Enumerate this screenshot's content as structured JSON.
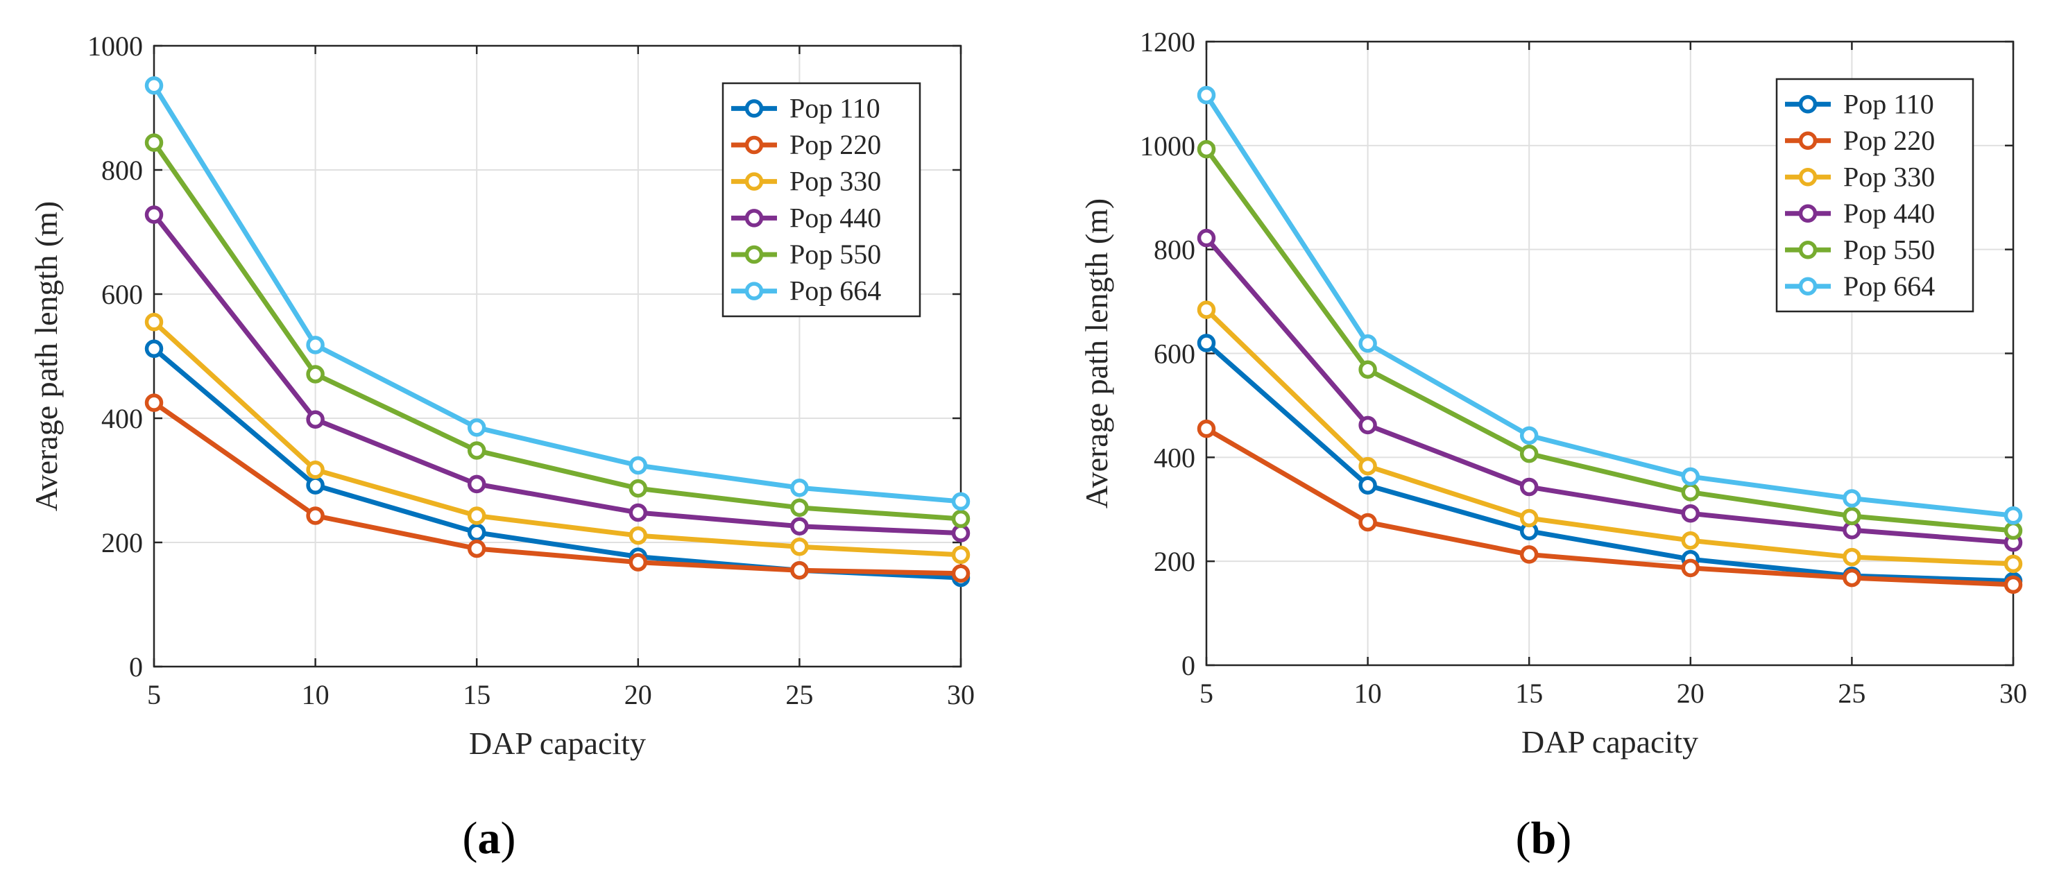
{
  "colors": {
    "series": [
      "#0072BD",
      "#D95319",
      "#EDB120",
      "#7E2F8E",
      "#77AC30",
      "#4DBEEE"
    ],
    "grid": "#e0e0e0",
    "axis": "#262626"
  },
  "chart_data": [
    {
      "type": "line",
      "panel_label": "(a)",
      "panel_letter": "a",
      "xlabel": "DAP capacity",
      "ylabel": "Average path length (m)",
      "x": [
        5,
        10,
        15,
        20,
        25,
        30
      ],
      "xticks": [
        "5",
        "10",
        "15",
        "20",
        "25",
        "30"
      ],
      "yticks": [
        "0",
        "200",
        "400",
        "600",
        "800",
        "1000"
      ],
      "xlim": [
        5,
        30
      ],
      "ylim": [
        0,
        1000
      ],
      "grid": true,
      "legend_position": "top-right",
      "series": [
        {
          "name": "Pop 110",
          "values": [
            512,
            292,
            216,
            177,
            155,
            143
          ]
        },
        {
          "name": "Pop 220",
          "values": [
            425,
            243,
            190,
            168,
            155,
            150
          ]
        },
        {
          "name": "Pop 330",
          "values": [
            555,
            317,
            243,
            211,
            193,
            180
          ]
        },
        {
          "name": "Pop 440",
          "values": [
            728,
            398,
            294,
            248,
            226,
            215
          ]
        },
        {
          "name": "Pop 550",
          "values": [
            844,
            471,
            348,
            287,
            256,
            238
          ]
        },
        {
          "name": "Pop 664",
          "values": [
            936,
            518,
            385,
            324,
            288,
            266
          ]
        }
      ]
    },
    {
      "type": "line",
      "panel_label": "(b)",
      "panel_letter": "b",
      "xlabel": "DAP capacity",
      "ylabel": "Average path length (m)",
      "x": [
        5,
        10,
        15,
        20,
        25,
        30
      ],
      "xticks": [
        "5",
        "10",
        "15",
        "20",
        "25",
        "30"
      ],
      "yticks": [
        "0",
        "200",
        "400",
        "600",
        "800",
        "1000",
        "1200"
      ],
      "xlim": [
        5,
        30
      ],
      "ylim": [
        0,
        1200
      ],
      "grid": true,
      "legend_position": "top-right",
      "series": [
        {
          "name": "Pop 110",
          "values": [
            620,
            346,
            258,
            204,
            172,
            162
          ]
        },
        {
          "name": "Pop 220",
          "values": [
            455,
            275,
            213,
            187,
            168,
            155
          ]
        },
        {
          "name": "Pop 330",
          "values": [
            684,
            383,
            283,
            240,
            208,
            195
          ]
        },
        {
          "name": "Pop 440",
          "values": [
            822,
            462,
            343,
            292,
            260,
            236
          ]
        },
        {
          "name": "Pop 550",
          "values": [
            993,
            569,
            407,
            333,
            287,
            259
          ]
        },
        {
          "name": "Pop 664",
          "values": [
            1097,
            619,
            442,
            363,
            321,
            288
          ]
        }
      ]
    }
  ]
}
